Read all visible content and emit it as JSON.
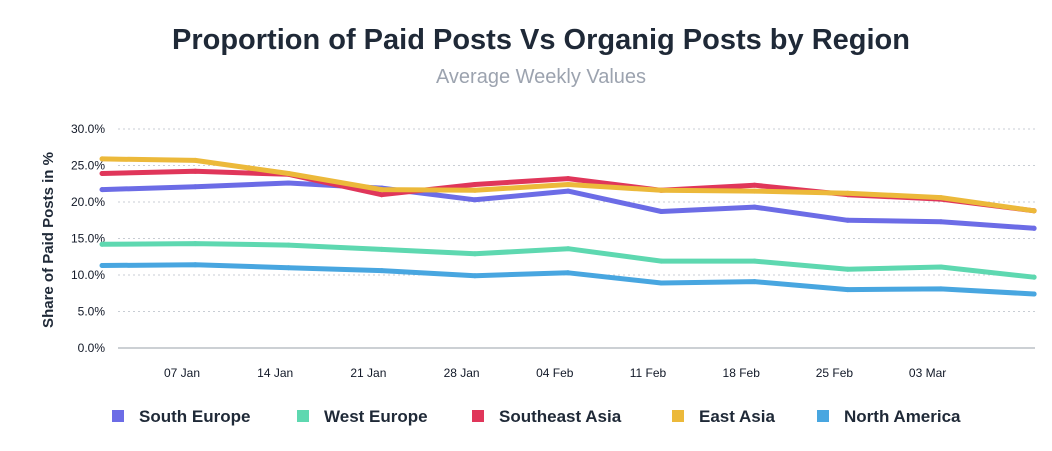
{
  "chart_data": {
    "type": "line",
    "title": "Proportion of Paid Posts Vs Organig Posts by Region",
    "subtitle": "Average Weekly Values",
    "ylabel": "Share of Paid Posts in %",
    "xlabel": "",
    "ylim": [
      0,
      30
    ],
    "y_ticks": [
      0,
      5,
      10,
      15,
      20,
      25,
      30
    ],
    "y_tick_labels": [
      "0.0%",
      "5.0%",
      "10.0%",
      "15.0%",
      "20.0%",
      "25.0%",
      "30.0%"
    ],
    "x_tick_labels": [
      "07 Jan",
      "14 Jan",
      "21 Jan",
      "28 Jan",
      "04 Feb",
      "11 Feb",
      "18 Feb",
      "25 Feb",
      "03 Mar"
    ],
    "x": [
      "2019-01-01",
      "2019-01-08",
      "2019-01-15",
      "2019-01-22",
      "2019-01-29",
      "2019-02-05",
      "2019-02-12",
      "2019-02-19",
      "2019-02-26",
      "2019-03-05",
      "2019-03-12"
    ],
    "grid": true,
    "legend": "bottom",
    "series": [
      {
        "name": "South Europe",
        "color": "#6c6ce6",
        "values": [
          21.7,
          22.1,
          22.6,
          21.9,
          20.3,
          21.5,
          18.7,
          19.3,
          17.5,
          17.3,
          16.4
        ]
      },
      {
        "name": "West Europe",
        "color": "#5ed8b0",
        "values": [
          14.2,
          14.3,
          14.1,
          13.5,
          12.9,
          13.6,
          11.9,
          11.9,
          10.8,
          11.1,
          9.7
        ]
      },
      {
        "name": "Southeast Asia",
        "color": "#e0365a",
        "values": [
          23.9,
          24.2,
          23.8,
          21.0,
          22.4,
          23.2,
          21.6,
          22.3,
          21.0,
          20.4,
          18.8
        ]
      },
      {
        "name": "East Asia",
        "color": "#ecb93a",
        "values": [
          25.9,
          25.7,
          23.9,
          21.7,
          21.6,
          22.4,
          21.6,
          21.5,
          21.2,
          20.6,
          18.8
        ]
      },
      {
        "name": "North America",
        "color": "#48a6e0",
        "values": [
          11.3,
          11.4,
          11.0,
          10.6,
          9.9,
          10.3,
          8.9,
          9.1,
          8.0,
          8.1,
          7.4
        ]
      }
    ]
  }
}
